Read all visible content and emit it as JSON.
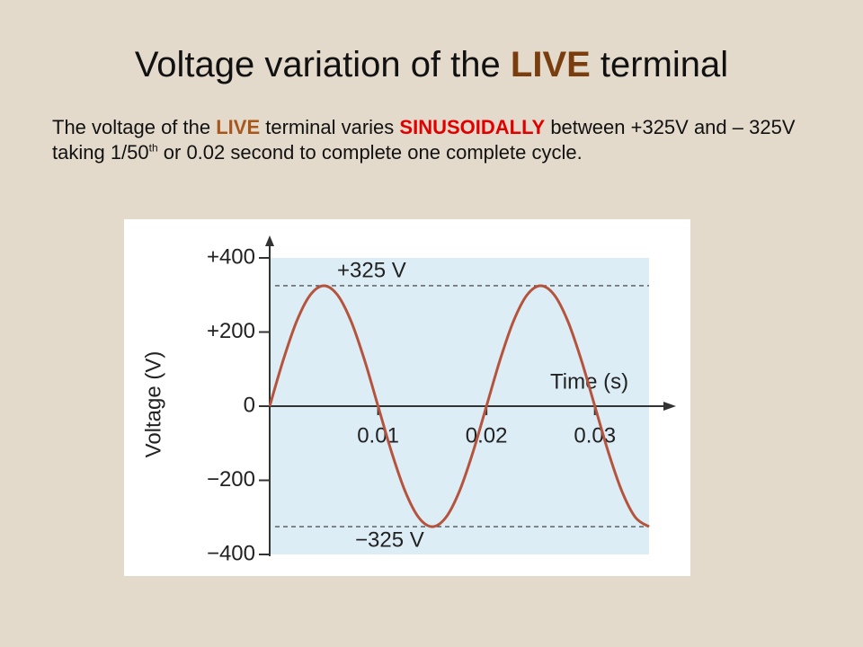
{
  "header": {
    "title": [
      "Voltage variation of the ",
      "LIVE",
      " terminal"
    ]
  },
  "body": {
    "runs": [
      "The voltage of the ",
      "LIVE",
      " terminal varies ",
      "SINUSOIDALLY",
      " between +325V and – 325V taking 1/50",
      "th",
      " or 0.02 second to complete one complete cycle."
    ]
  },
  "chart_data": {
    "type": "line",
    "x_label": "Time (s)",
    "y_label": "Voltage (V)",
    "x": [
      0,
      0.00125,
      0.0025,
      0.00375,
      0.005,
      0.00625,
      0.0075,
      0.00875,
      0.01,
      0.01125,
      0.0125,
      0.01375,
      0.015,
      0.01625,
      0.0175,
      0.01875,
      0.02,
      0.02125,
      0.0225,
      0.02375,
      0.025,
      0.02625,
      0.0275,
      0.02875,
      0.03,
      0.03125,
      0.0325,
      0.03375,
      0.035
    ],
    "series": [
      {
        "color": "#b5533c",
        "values": [
          0,
          124.4,
          229.8,
          300.3,
          325,
          300.3,
          229.8,
          124.4,
          0,
          -124.4,
          -229.8,
          -300.3,
          -325,
          -300.3,
          -229.8,
          -124.4,
          0,
          124.4,
          229.8,
          300.3,
          325,
          300.3,
          229.8,
          124.4,
          0,
          -124.4,
          -229.8,
          -300.3,
          -325
        ]
      }
    ],
    "reference_lines": [
      {
        "value": 325,
        "label": "+325 V"
      },
      {
        "value": -325,
        "label": "−325 V"
      }
    ],
    "xlim": [
      0,
      0.035
    ],
    "ylim": [
      -400,
      400
    ],
    "xticks": [
      0.01,
      0.02,
      0.03
    ],
    "yticks": [
      {
        "value": 400,
        "label": "+400"
      },
      {
        "value": 200,
        "label": "+200"
      },
      0,
      {
        "value": -200,
        "label": "−200"
      },
      {
        "value": -400,
        "label": "−400"
      }
    ]
  }
}
